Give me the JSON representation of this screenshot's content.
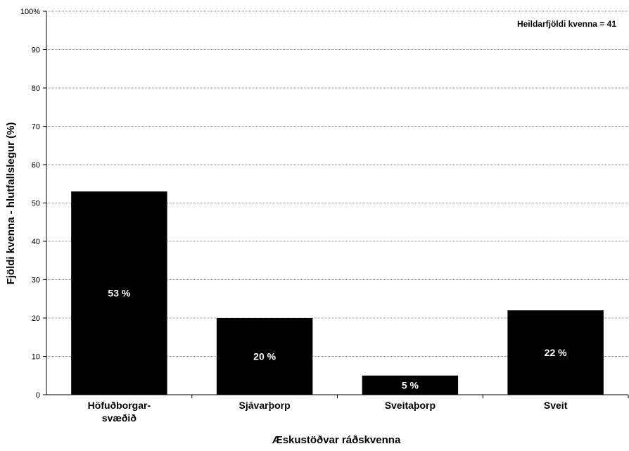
{
  "chart_data": {
    "type": "bar",
    "categories": [
      [
        "Höfuðborgar-",
        "svæðið"
      ],
      [
        "Sjávarþorp"
      ],
      [
        "Sveitaþorp"
      ],
      [
        "Sveit"
      ]
    ],
    "values": [
      53,
      20,
      5,
      22
    ],
    "data_labels": [
      "53 %",
      "20 %",
      "5 %",
      "22 %"
    ],
    "ylabel": "Fjöldi kvenna - hlutfallslegur (%)",
    "xlabel": "Æskustöðvar ráðskvenna",
    "ylim": [
      0,
      100
    ],
    "yticks": [
      "0",
      "10",
      "20",
      "30",
      "40",
      "50",
      "60",
      "70",
      "80",
      "90",
      "100%"
    ],
    "grid": true,
    "annotation": "Heildarfjöldi kvenna = 41",
    "bar_color": "#000000",
    "bar_label_color": "#ffffff",
    "grid_color": "#8c8c8c"
  }
}
